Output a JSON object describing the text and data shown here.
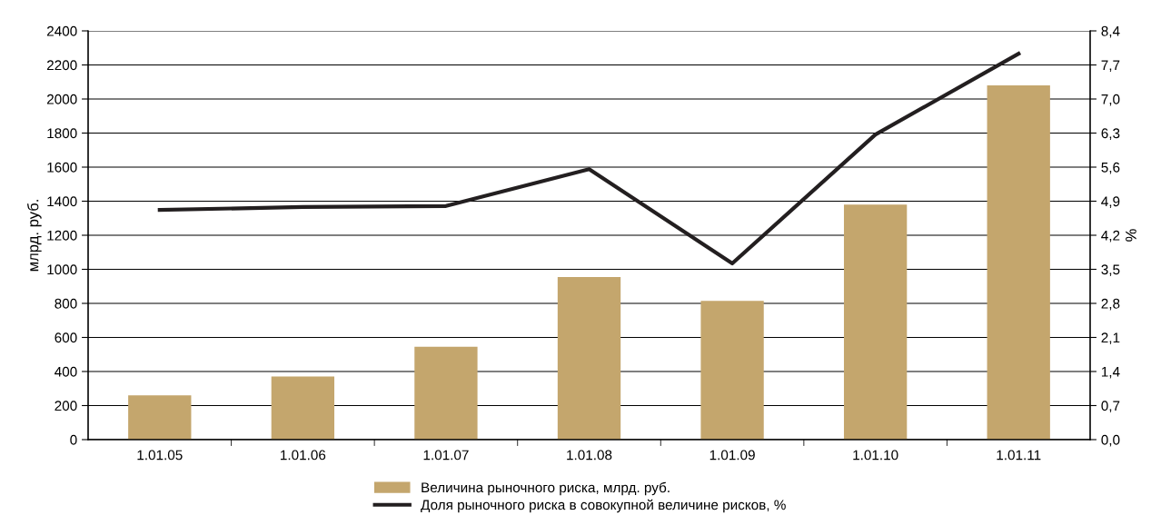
{
  "chart_data": {
    "type": "bar",
    "ylabel": "млрд. руб.",
    "y2label": "%",
    "categories": [
      "1.01.05",
      "1.01.06",
      "1.01.07",
      "1.01.08",
      "1.01.09",
      "1.01.10",
      "1.01.11"
    ],
    "series": [
      {
        "name": "Величина рыночного риска, млрд. руб.",
        "color": "#c4a66d",
        "values": [
          260,
          370,
          545,
          955,
          815,
          1380,
          2080
        ]
      },
      {
        "name": "Доля рыночного риска в совокупной величине рисков, %",
        "type": "line",
        "axis": "y2",
        "color": "#231f20",
        "values": [
          4.72,
          4.78,
          4.8,
          5.56,
          3.62,
          6.27,
          7.93
        ]
      }
    ],
    "ylim": [
      0,
      2400
    ],
    "yticks": [
      0,
      200,
      400,
      600,
      800,
      1000,
      1200,
      1400,
      1600,
      1800,
      2000,
      2200,
      2400
    ],
    "y2lim": [
      0,
      8.4
    ],
    "y2ticks": [
      {
        "value": 0,
        "label": "0,0"
      },
      {
        "value": 0.7,
        "label": "0,7"
      },
      {
        "value": 1.4,
        "label": "1,4"
      },
      {
        "value": 2.1,
        "label": "2,1"
      },
      {
        "value": 2.8,
        "label": "2,8"
      },
      {
        "value": 3.5,
        "label": "3,5"
      },
      {
        "value": 4.2,
        "label": "4,2"
      },
      {
        "value": 4.9,
        "label": "4,9"
      },
      {
        "value": 5.6,
        "label": "5,6"
      },
      {
        "value": 6.3,
        "label": "6,3"
      },
      {
        "value": 7.0,
        "label": "7,0"
      },
      {
        "value": 7.7,
        "label": "7,7"
      },
      {
        "value": 8.4,
        "label": "8,4"
      }
    ],
    "grid": "y",
    "legend": "bottom",
    "marker": "none",
    "line_style": "solid"
  }
}
